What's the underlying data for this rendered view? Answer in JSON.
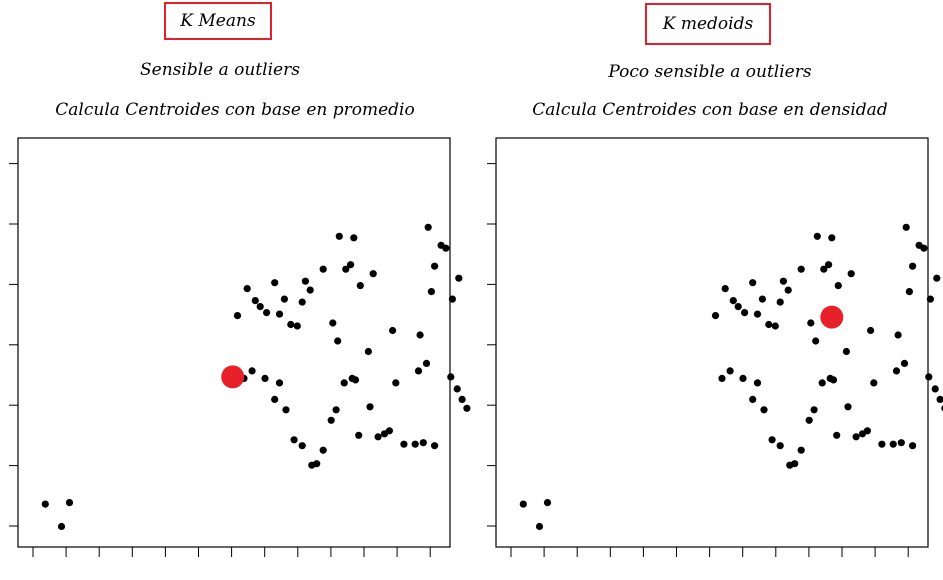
{
  "panels": [
    {
      "title": "K Means",
      "line1": "Sensible a outliers",
      "line2": "Calcula Centroides con base en promedio"
    },
    {
      "title": "K medoids",
      "line1": "Poco sensible a outliers",
      "line2": "Calcula Centroides con base en densidad"
    }
  ],
  "colors": {
    "points": "#000000",
    "centroid": "#e8202a",
    "title_border": "#e0202a"
  },
  "chart_data": [
    {
      "type": "scatter",
      "title": "K Means",
      "xlim": [
        0,
        13
      ],
      "ylim": [
        0,
        13
      ],
      "points": [
        [
          0.35,
          1.1
        ],
        [
          0.85,
          0.35
        ],
        [
          1.1,
          1.15
        ],
        [
          6.3,
          7.4
        ],
        [
          6.6,
          8.3
        ],
        [
          6.85,
          7.9
        ],
        [
          7.0,
          7.7
        ],
        [
          7.2,
          7.5
        ],
        [
          7.45,
          8.5
        ],
        [
          7.6,
          7.45
        ],
        [
          7.75,
          7.95
        ],
        [
          7.95,
          7.1
        ],
        [
          8.15,
          7.05
        ],
        [
          8.3,
          7.85
        ],
        [
          8.4,
          8.55
        ],
        [
          8.55,
          8.25
        ],
        [
          8.95,
          8.95
        ],
        [
          9.25,
          7.15
        ],
        [
          9.45,
          10.05
        ],
        [
          9.65,
          8.95
        ],
        [
          9.8,
          9.1
        ],
        [
          10.1,
          8.4
        ],
        [
          9.4,
          6.55
        ],
        [
          6.5,
          5.3
        ],
        [
          6.75,
          5.55
        ],
        [
          7.15,
          5.3
        ],
        [
          7.45,
          4.6
        ],
        [
          7.6,
          5.15
        ],
        [
          7.8,
          4.25
        ],
        [
          8.05,
          3.25
        ],
        [
          8.3,
          3.05
        ],
        [
          8.6,
          2.4
        ],
        [
          8.75,
          2.45
        ],
        [
          8.95,
          2.9
        ],
        [
          9.2,
          3.9
        ],
        [
          9.35,
          4.25
        ],
        [
          9.6,
          5.15
        ],
        [
          9.85,
          5.3
        ],
        [
          9.95,
          5.25
        ],
        [
          10.05,
          3.4
        ],
        [
          10.35,
          6.2
        ],
        [
          10.4,
          4.35
        ],
        [
          10.65,
          3.35
        ],
        [
          10.85,
          3.45
        ],
        [
          11.0,
          3.55
        ],
        [
          11.1,
          6.9
        ],
        [
          11.2,
          5.15
        ],
        [
          11.45,
          3.1
        ],
        [
          11.8,
          3.1
        ],
        [
          11.9,
          5.55
        ],
        [
          12.05,
          3.15
        ],
        [
          12.15,
          5.8
        ],
        [
          12.4,
          3.05
        ],
        [
          11.95,
          6.75
        ],
        [
          12.2,
          10.35
        ],
        [
          12.3,
          8.2
        ],
        [
          12.4,
          9.05
        ],
        [
          12.6,
          9.75
        ],
        [
          12.75,
          9.65
        ],
        [
          12.95,
          7.95
        ],
        [
          13.15,
          8.65
        ],
        [
          12.9,
          5.35
        ],
        [
          13.1,
          4.95
        ],
        [
          13.25,
          4.6
        ],
        [
          13.4,
          4.3
        ],
        [
          9.9,
          10.0
        ],
        [
          10.5,
          8.8
        ]
      ],
      "centroid": [
        6.15,
        5.35
      ]
    },
    {
      "type": "scatter",
      "title": "K medoids",
      "xlim": [
        0,
        13
      ],
      "ylim": [
        0,
        13
      ],
      "points": [
        [
          0.35,
          1.1
        ],
        [
          0.85,
          0.35
        ],
        [
          1.1,
          1.15
        ],
        [
          6.3,
          7.4
        ],
        [
          6.6,
          8.3
        ],
        [
          6.85,
          7.9
        ],
        [
          7.0,
          7.7
        ],
        [
          7.2,
          7.5
        ],
        [
          7.45,
          8.5
        ],
        [
          7.6,
          7.45
        ],
        [
          7.75,
          7.95
        ],
        [
          7.95,
          7.1
        ],
        [
          8.15,
          7.05
        ],
        [
          8.3,
          7.85
        ],
        [
          8.4,
          8.55
        ],
        [
          8.55,
          8.25
        ],
        [
          8.95,
          8.95
        ],
        [
          9.25,
          7.15
        ],
        [
          9.45,
          10.05
        ],
        [
          9.65,
          8.95
        ],
        [
          9.8,
          9.1
        ],
        [
          10.1,
          8.4
        ],
        [
          9.4,
          6.55
        ],
        [
          6.5,
          5.3
        ],
        [
          6.75,
          5.55
        ],
        [
          7.15,
          5.3
        ],
        [
          7.45,
          4.6
        ],
        [
          7.6,
          5.15
        ],
        [
          7.8,
          4.25
        ],
        [
          8.05,
          3.25
        ],
        [
          8.3,
          3.05
        ],
        [
          8.6,
          2.4
        ],
        [
          8.75,
          2.45
        ],
        [
          8.95,
          2.9
        ],
        [
          9.2,
          3.9
        ],
        [
          9.35,
          4.25
        ],
        [
          9.6,
          5.15
        ],
        [
          9.85,
          5.3
        ],
        [
          9.95,
          5.25
        ],
        [
          10.05,
          3.4
        ],
        [
          10.35,
          6.2
        ],
        [
          10.4,
          4.35
        ],
        [
          10.65,
          3.35
        ],
        [
          10.85,
          3.45
        ],
        [
          11.0,
          3.55
        ],
        [
          11.1,
          6.9
        ],
        [
          11.2,
          5.15
        ],
        [
          11.45,
          3.1
        ],
        [
          11.8,
          3.1
        ],
        [
          11.9,
          5.55
        ],
        [
          12.05,
          3.15
        ],
        [
          12.15,
          5.8
        ],
        [
          12.4,
          3.05
        ],
        [
          11.95,
          6.75
        ],
        [
          12.2,
          10.35
        ],
        [
          12.3,
          8.2
        ],
        [
          12.4,
          9.05
        ],
        [
          12.6,
          9.75
        ],
        [
          12.75,
          9.65
        ],
        [
          12.95,
          7.95
        ],
        [
          13.15,
          8.65
        ],
        [
          12.9,
          5.35
        ],
        [
          13.1,
          4.95
        ],
        [
          13.25,
          4.6
        ],
        [
          13.4,
          4.3
        ],
        [
          9.9,
          10.0
        ],
        [
          10.5,
          8.8
        ]
      ],
      "centroid": [
        9.9,
        7.35
      ]
    }
  ]
}
